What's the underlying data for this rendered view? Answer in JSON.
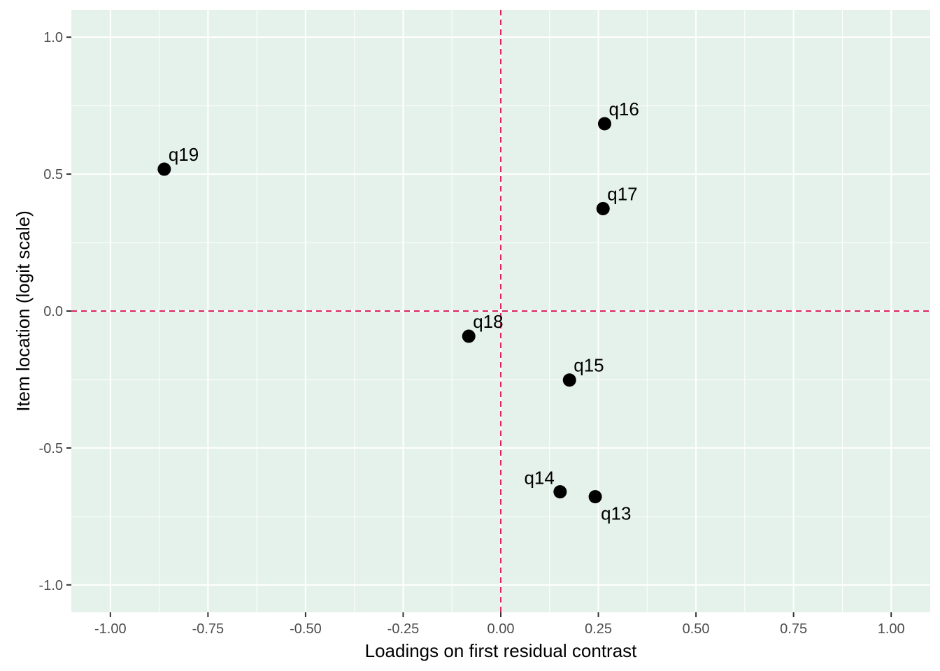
{
  "chart_data": {
    "type": "scatter",
    "title": "",
    "xlabel": "Loadings on first residual contrast",
    "ylabel": "Item location (logit scale)",
    "xlim": [
      -1.1,
      1.1
    ],
    "ylim": [
      -1.1,
      1.1
    ],
    "x_ticks": [
      -1.0,
      -0.75,
      -0.5,
      -0.25,
      0.0,
      0.25,
      0.5,
      0.75,
      1.0
    ],
    "x_tick_labels": [
      "-1.00",
      "-0.75",
      "-0.50",
      "-0.25",
      "0.00",
      "0.25",
      "0.50",
      "0.75",
      "1.00"
    ],
    "y_ticks": [
      -1.0,
      -0.5,
      0.0,
      0.5,
      1.0
    ],
    "y_tick_labels": [
      "-1.0",
      "-0.5",
      "0.0",
      "0.5",
      "1.0"
    ],
    "reference_lines": {
      "x": 0.0,
      "y": 0.0,
      "style": "dashed",
      "color": "#e0245e"
    },
    "points": [
      {
        "label": "q13",
        "x": 0.242,
        "y": -0.678,
        "label_side": "below-right"
      },
      {
        "label": "q14",
        "x": 0.152,
        "y": -0.66,
        "label_side": "above-left"
      },
      {
        "label": "q15",
        "x": 0.176,
        "y": -0.252,
        "label_side": "above-right"
      },
      {
        "label": "q16",
        "x": 0.266,
        "y": 0.684,
        "label_side": "above-right"
      },
      {
        "label": "q17",
        "x": 0.262,
        "y": 0.374,
        "label_side": "above-right"
      },
      {
        "label": "q18",
        "x": -0.082,
        "y": -0.092,
        "label_side": "above-right"
      },
      {
        "label": "q19",
        "x": -0.862,
        "y": 0.518,
        "label_side": "above-right"
      }
    ],
    "grid": true,
    "colors": {
      "panel": "#e5f2eb",
      "grid": "#ffffff",
      "point": "#000000",
      "reference": "#e0245e"
    }
  }
}
